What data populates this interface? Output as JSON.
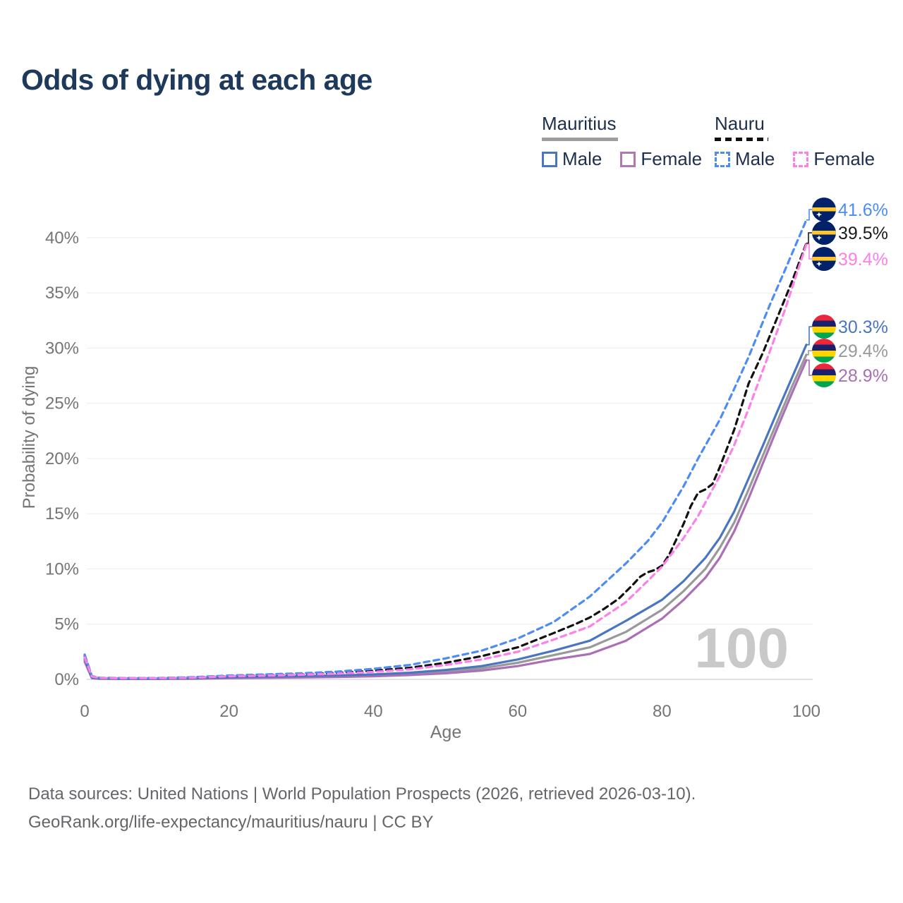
{
  "title": "Odds of dying at each age",
  "legend": {
    "groups": [
      {
        "label": "Mauritius",
        "line_color": "#9e9e9e",
        "line_style": "solid"
      },
      {
        "label": "Nauru",
        "line_color": "#111111",
        "line_style": "dashed"
      }
    ],
    "items": [
      {
        "label": "Male",
        "country": "Mauritius",
        "color": "#4a76c0",
        "style": "solid"
      },
      {
        "label": "Female",
        "country": "Mauritius",
        "color": "#b078b0",
        "style": "solid"
      },
      {
        "label": "Male",
        "country": "Nauru",
        "color": "#4d8cf5",
        "style": "dashed"
      },
      {
        "label": "Female",
        "country": "Nauru",
        "color": "#fb80e8",
        "style": "dashed"
      }
    ]
  },
  "axes": {
    "y_title": "Probability of dying",
    "x_title": "Age",
    "y_ticks": [
      "0%",
      "5%",
      "10%",
      "15%",
      "20%",
      "25%",
      "30%",
      "35%",
      "40%"
    ],
    "x_ticks": [
      "0",
      "20",
      "40",
      "60",
      "80",
      "100"
    ]
  },
  "watermark": "100",
  "end_labels": [
    {
      "value": "41.6%",
      "series": "Nauru Male",
      "flag": "nauru",
      "color": "#4d8cf5"
    },
    {
      "value": "39.5%",
      "series": "Nauru",
      "flag": "nauru",
      "color": "#1a1a1a"
    },
    {
      "value": "39.4%",
      "series": "Nauru Female",
      "flag": "nauru",
      "color": "#fb80e8"
    },
    {
      "value": "30.3%",
      "series": "Mauritius Male",
      "flag": "mauritius",
      "color": "#4a76c0"
    },
    {
      "value": "29.4%",
      "series": "Mauritius",
      "flag": "mauritius",
      "color": "#999999"
    },
    {
      "value": "28.9%",
      "series": "Mauritius Female",
      "flag": "mauritius",
      "color": "#aa6fb5"
    }
  ],
  "footer": {
    "line1": "Data sources: United Nations | World Population Prospects (2026, retrieved 2026-03-10).",
    "line2": "GeoRank.org/life-expectancy/mauritius/nauru | CC BY"
  },
  "chart_data": {
    "type": "line",
    "title": "Odds of dying at each age",
    "xlabel": "Age",
    "ylabel": "Probability of dying",
    "xlim": [
      0,
      100
    ],
    "ylim_pct": [
      0,
      42
    ],
    "x_ticks": [
      0,
      20,
      40,
      60,
      80,
      100
    ],
    "y_ticks_pct": [
      0,
      5,
      10,
      15,
      20,
      25,
      30,
      35,
      40
    ],
    "grid": "horizontal-only",
    "legend_position": "top-right",
    "note": "values are probability of dying at each age in percent; points are [age, percent]",
    "series": [
      {
        "id": "mauritius",
        "name": "Mauritius",
        "country": "Mauritius",
        "sex": "both",
        "style": "solid",
        "color": "#999999",
        "end_value_pct": 29.4,
        "points": [
          [
            0,
            1.75
          ],
          [
            1,
            0.13
          ],
          [
            2,
            0.07
          ],
          [
            5,
            0.045
          ],
          [
            10,
            0.045
          ],
          [
            15,
            0.08
          ],
          [
            20,
            0.16
          ],
          [
            25,
            0.2
          ],
          [
            30,
            0.24
          ],
          [
            35,
            0.29
          ],
          [
            40,
            0.37
          ],
          [
            45,
            0.5
          ],
          [
            50,
            0.7
          ],
          [
            55,
            1.0
          ],
          [
            60,
            1.5
          ],
          [
            65,
            2.2
          ],
          [
            70,
            2.9
          ],
          [
            75,
            4.3
          ],
          [
            80,
            6.3
          ],
          [
            83,
            8.0
          ],
          [
            86,
            10.0
          ],
          [
            88,
            11.9
          ],
          [
            90,
            14.2
          ],
          [
            92,
            17.2
          ],
          [
            94,
            20.3
          ],
          [
            96,
            23.4
          ],
          [
            98,
            26.5
          ],
          [
            100,
            29.4
          ]
        ]
      },
      {
        "id": "mauritius_female",
        "name": "Mauritius Female",
        "country": "Mauritius",
        "sex": "female",
        "style": "solid",
        "color": "#aa6fb5",
        "end_value_pct": 28.9,
        "points": [
          [
            0,
            1.6
          ],
          [
            1,
            0.12
          ],
          [
            2,
            0.06
          ],
          [
            5,
            0.04
          ],
          [
            10,
            0.04
          ],
          [
            15,
            0.06
          ],
          [
            20,
            0.11
          ],
          [
            25,
            0.14
          ],
          [
            30,
            0.17
          ],
          [
            35,
            0.21
          ],
          [
            40,
            0.28
          ],
          [
            45,
            0.39
          ],
          [
            50,
            0.55
          ],
          [
            55,
            0.8
          ],
          [
            60,
            1.2
          ],
          [
            65,
            1.8
          ],
          [
            70,
            2.3
          ],
          [
            75,
            3.5
          ],
          [
            80,
            5.5
          ],
          [
            83,
            7.2
          ],
          [
            86,
            9.2
          ],
          [
            88,
            11.0
          ],
          [
            90,
            13.4
          ],
          [
            92,
            16.4
          ],
          [
            94,
            19.6
          ],
          [
            96,
            22.8
          ],
          [
            98,
            25.9
          ],
          [
            100,
            28.9
          ]
        ]
      },
      {
        "id": "mauritius_male",
        "name": "Mauritius Male",
        "country": "Mauritius",
        "sex": "male",
        "style": "solid",
        "color": "#4a76c0",
        "end_value_pct": 30.3,
        "points": [
          [
            0,
            1.9
          ],
          [
            1,
            0.15
          ],
          [
            2,
            0.08
          ],
          [
            5,
            0.05
          ],
          [
            10,
            0.05
          ],
          [
            15,
            0.1
          ],
          [
            20,
            0.2
          ],
          [
            25,
            0.25
          ],
          [
            30,
            0.3
          ],
          [
            35,
            0.35
          ],
          [
            40,
            0.45
          ],
          [
            45,
            0.6
          ],
          [
            50,
            0.85
          ],
          [
            55,
            1.2
          ],
          [
            60,
            1.8
          ],
          [
            65,
            2.6
          ],
          [
            70,
            3.5
          ],
          [
            75,
            5.3
          ],
          [
            80,
            7.2
          ],
          [
            83,
            8.9
          ],
          [
            86,
            11.0
          ],
          [
            88,
            12.8
          ],
          [
            90,
            15.2
          ],
          [
            92,
            18.2
          ],
          [
            94,
            21.2
          ],
          [
            96,
            24.3
          ],
          [
            98,
            27.3
          ],
          [
            100,
            30.3
          ]
        ]
      },
      {
        "id": "nauru",
        "name": "Nauru",
        "country": "Nauru",
        "sex": "both",
        "style": "dashed",
        "color": "#111111",
        "end_value_pct": 39.5,
        "points": [
          [
            0,
            2.1
          ],
          [
            1,
            0.28
          ],
          [
            2,
            0.13
          ],
          [
            5,
            0.11
          ],
          [
            10,
            0.11
          ],
          [
            15,
            0.17
          ],
          [
            20,
            0.3
          ],
          [
            25,
            0.38
          ],
          [
            30,
            0.46
          ],
          [
            35,
            0.58
          ],
          [
            40,
            0.78
          ],
          [
            45,
            1.05
          ],
          [
            50,
            1.5
          ],
          [
            55,
            2.1
          ],
          [
            60,
            2.9
          ],
          [
            65,
            4.2
          ],
          [
            68,
            5.0
          ],
          [
            70,
            5.6
          ],
          [
            72,
            6.4
          ],
          [
            74,
            7.3
          ],
          [
            76,
            8.6
          ],
          [
            77,
            9.3
          ],
          [
            78,
            9.7
          ],
          [
            79,
            9.9
          ],
          [
            80,
            10.3
          ],
          [
            81,
            11.3
          ],
          [
            82,
            12.7
          ],
          [
            83,
            14.1
          ],
          [
            84,
            15.7
          ],
          [
            85,
            16.9
          ],
          [
            86,
            17.2
          ],
          [
            87,
            17.7
          ],
          [
            88,
            19.2
          ],
          [
            90,
            22.6
          ],
          [
            92,
            26.8
          ],
          [
            94,
            29.6
          ],
          [
            96,
            32.8
          ],
          [
            98,
            36.0
          ],
          [
            100,
            39.5
          ]
        ]
      },
      {
        "id": "nauru_male",
        "name": "Nauru Male",
        "country": "Nauru",
        "sex": "male",
        "style": "dashed",
        "color": "#4d8cf5",
        "end_value_pct": 41.6,
        "points": [
          [
            0,
            2.25
          ],
          [
            1,
            0.3
          ],
          [
            2,
            0.15
          ],
          [
            5,
            0.12
          ],
          [
            10,
            0.12
          ],
          [
            15,
            0.2
          ],
          [
            20,
            0.35
          ],
          [
            25,
            0.45
          ],
          [
            30,
            0.55
          ],
          [
            35,
            0.7
          ],
          [
            40,
            0.95
          ],
          [
            45,
            1.3
          ],
          [
            50,
            1.9
          ],
          [
            55,
            2.6
          ],
          [
            60,
            3.7
          ],
          [
            65,
            5.2
          ],
          [
            70,
            7.5
          ],
          [
            75,
            10.5
          ],
          [
            78,
            12.5
          ],
          [
            80,
            14.2
          ],
          [
            83,
            17.5
          ],
          [
            85,
            20.0
          ],
          [
            88,
            23.5
          ],
          [
            90,
            26.3
          ],
          [
            92,
            29.2
          ],
          [
            95,
            34.0
          ],
          [
            97,
            37.0
          ],
          [
            100,
            41.6
          ]
        ]
      },
      {
        "id": "nauru_female",
        "name": "Nauru Female",
        "country": "Nauru",
        "sex": "female",
        "style": "dashed",
        "color": "#fb80e8",
        "end_value_pct": 39.4,
        "points": [
          [
            0,
            2.0
          ],
          [
            1,
            0.26
          ],
          [
            2,
            0.12
          ],
          [
            5,
            0.1
          ],
          [
            10,
            0.1
          ],
          [
            15,
            0.15
          ],
          [
            20,
            0.28
          ],
          [
            25,
            0.34
          ],
          [
            30,
            0.42
          ],
          [
            35,
            0.52
          ],
          [
            40,
            0.68
          ],
          [
            45,
            0.9
          ],
          [
            50,
            1.3
          ],
          [
            55,
            1.8
          ],
          [
            60,
            2.5
          ],
          [
            65,
            3.6
          ],
          [
            70,
            4.8
          ],
          [
            75,
            7.0
          ],
          [
            78,
            8.9
          ],
          [
            80,
            10.2
          ],
          [
            83,
            12.8
          ],
          [
            85,
            14.8
          ],
          [
            88,
            18.4
          ],
          [
            90,
            21.2
          ],
          [
            92,
            24.5
          ],
          [
            95,
            29.8
          ],
          [
            97,
            33.4
          ],
          [
            100,
            39.4
          ]
        ]
      }
    ]
  }
}
